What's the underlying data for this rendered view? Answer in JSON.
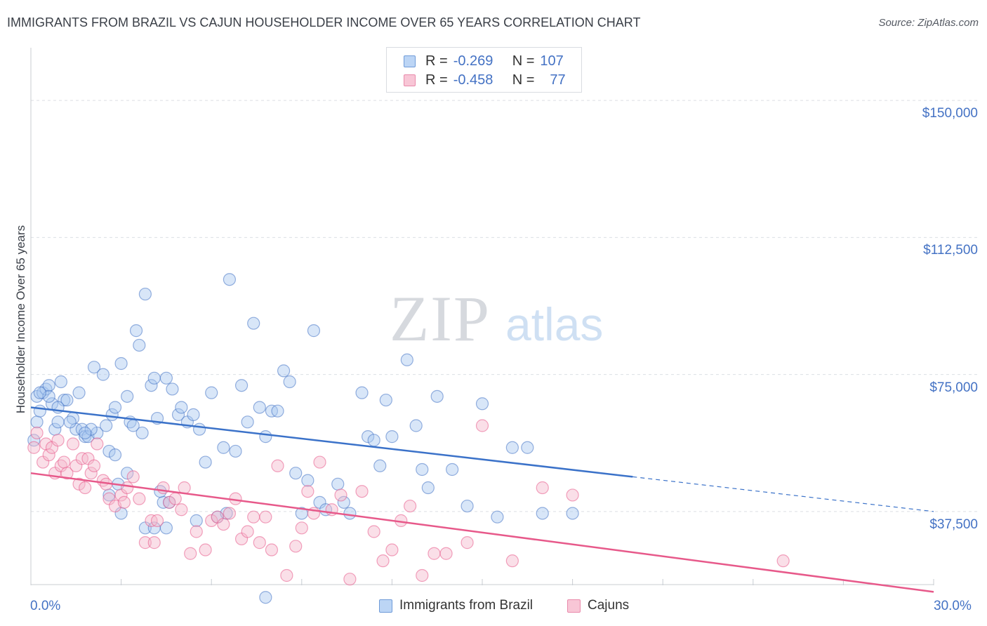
{
  "title": "IMMIGRANTS FROM BRAZIL VS CAJUN HOUSEHOLDER INCOME OVER 65 YEARS CORRELATION CHART",
  "source": "Source: ZipAtlas.com",
  "legend_stats": [
    {
      "r_label": "R =",
      "r_value": "-0.269",
      "n_label": "N =",
      "n_value": "107",
      "color": "#a9c8f0"
    },
    {
      "r_label": "R =",
      "r_value": "-0.458",
      "n_label": "N =",
      "n_value": "77",
      "color": "#f5b8cb"
    }
  ],
  "chart_data": {
    "type": "scatter",
    "title": "IMMIGRANTS FROM BRAZIL VS CAJUN HOUSEHOLDER INCOME OVER 65 YEARS CORRELATION CHART",
    "xlabel": "",
    "ylabel": "Householder Income Over 65 years",
    "xlim": [
      0,
      30
    ],
    "ylim": [
      17500,
      162500
    ],
    "x_tick_labels": [
      "0.0%",
      "30.0%"
    ],
    "y_ticks": [
      37500,
      75000,
      112500,
      150000
    ],
    "y_tick_labels": [
      "$37,500",
      "$75,000",
      "$112,500",
      "$150,000"
    ],
    "grid": true,
    "legend_position": "bottom",
    "watermark": "ZIPatlas",
    "series": [
      {
        "name": "Immigrants from Brazil",
        "color": "#4472c4",
        "fill": "#a9c8f0",
        "trend": {
          "x": [
            0,
            20
          ],
          "y": [
            66000,
            47000
          ],
          "dashed_extension_x": [
            20,
            30
          ],
          "dashed_extension_y": [
            47000,
            37500
          ]
        },
        "points": [
          [
            0.1,
            57
          ],
          [
            0.2,
            62
          ],
          [
            0.2,
            69
          ],
          [
            0.3,
            65
          ],
          [
            0.4,
            70
          ],
          [
            0.5,
            71
          ],
          [
            0.6,
            72
          ],
          [
            0.7,
            67
          ],
          [
            0.8,
            60
          ],
          [
            0.9,
            62
          ],
          [
            1.0,
            73
          ],
          [
            1.1,
            68
          ],
          [
            1.2,
            68
          ],
          [
            1.4,
            63
          ],
          [
            1.5,
            60
          ],
          [
            1.6,
            70
          ],
          [
            1.7,
            60
          ],
          [
            1.8,
            58
          ],
          [
            1.9,
            58
          ],
          [
            2.1,
            77
          ],
          [
            2.2,
            59
          ],
          [
            2.4,
            75
          ],
          [
            2.5,
            61
          ],
          [
            2.6,
            54
          ],
          [
            2.7,
            64
          ],
          [
            2.8,
            66
          ],
          [
            2.9,
            45
          ],
          [
            3.0,
            78
          ],
          [
            3.2,
            69
          ],
          [
            3.3,
            62
          ],
          [
            3.4,
            61
          ],
          [
            3.5,
            87
          ],
          [
            3.6,
            83
          ],
          [
            3.7,
            59
          ],
          [
            3.8,
            97
          ],
          [
            4.0,
            72
          ],
          [
            4.1,
            74
          ],
          [
            4.2,
            63
          ],
          [
            4.4,
            40
          ],
          [
            4.5,
            74
          ],
          [
            4.7,
            71
          ],
          [
            4.9,
            64
          ],
          [
            4.5,
            33
          ],
          [
            4.3,
            43
          ],
          [
            4.6,
            40
          ],
          [
            5.0,
            66
          ],
          [
            5.2,
            62
          ],
          [
            5.4,
            64
          ],
          [
            5.6,
            60
          ],
          [
            5.8,
            51
          ],
          [
            6.0,
            70
          ],
          [
            6.2,
            36
          ],
          [
            6.4,
            55
          ],
          [
            6.6,
            101
          ],
          [
            6.8,
            54
          ],
          [
            7.0,
            72
          ],
          [
            7.2,
            62
          ],
          [
            7.4,
            89
          ],
          [
            7.6,
            66
          ],
          [
            7.8,
            58
          ],
          [
            8.0,
            65
          ],
          [
            8.2,
            65
          ],
          [
            8.4,
            76
          ],
          [
            8.6,
            73
          ],
          [
            8.8,
            48
          ],
          [
            9.0,
            37
          ],
          [
            9.2,
            46
          ],
          [
            9.4,
            87
          ],
          [
            9.6,
            40
          ],
          [
            9.8,
            38
          ],
          [
            10.2,
            45
          ],
          [
            10.4,
            40
          ],
          [
            10.6,
            37
          ],
          [
            11.0,
            70
          ],
          [
            11.2,
            58
          ],
          [
            11.4,
            57
          ],
          [
            11.6,
            50
          ],
          [
            11.8,
            68
          ],
          [
            12.0,
            58
          ],
          [
            12.5,
            79
          ],
          [
            12.8,
            61
          ],
          [
            13.0,
            49
          ],
          [
            13.2,
            44
          ],
          [
            13.5,
            69
          ],
          [
            14.0,
            49
          ],
          [
            14.5,
            39
          ],
          [
            15.0,
            67
          ],
          [
            15.5,
            36
          ],
          [
            16.0,
            55
          ],
          [
            16.5,
            55
          ],
          [
            17.0,
            37
          ],
          [
            18.0,
            37
          ],
          [
            7.8,
            14
          ],
          [
            3.8,
            33
          ],
          [
            4.1,
            33
          ],
          [
            5.5,
            35
          ],
          [
            6.5,
            37
          ],
          [
            2.6,
            42
          ],
          [
            3.0,
            37
          ],
          [
            2.0,
            60
          ],
          [
            1.3,
            62
          ],
          [
            0.9,
            66
          ],
          [
            0.6,
            69
          ],
          [
            0.3,
            70
          ],
          [
            1.8,
            59
          ],
          [
            2.8,
            53
          ],
          [
            3.2,
            48
          ]
        ]
      },
      {
        "name": "Cajuns",
        "color": "#e7598a",
        "fill": "#f5b8cb",
        "trend": {
          "x": [
            0,
            30
          ],
          "y": [
            48000,
            15500
          ]
        },
        "points": [
          [
            0.1,
            55
          ],
          [
            0.2,
            59
          ],
          [
            0.4,
            51
          ],
          [
            0.5,
            56
          ],
          [
            0.6,
            53
          ],
          [
            0.7,
            55
          ],
          [
            0.8,
            48
          ],
          [
            0.9,
            57
          ],
          [
            1.0,
            50
          ],
          [
            1.1,
            51
          ],
          [
            1.2,
            48
          ],
          [
            1.4,
            56
          ],
          [
            1.5,
            50
          ],
          [
            1.6,
            45
          ],
          [
            1.7,
            52
          ],
          [
            1.8,
            44
          ],
          [
            1.9,
            52
          ],
          [
            2.0,
            48
          ],
          [
            2.1,
            50
          ],
          [
            2.2,
            56
          ],
          [
            2.4,
            46
          ],
          [
            2.5,
            45
          ],
          [
            2.6,
            41
          ],
          [
            2.8,
            39
          ],
          [
            3.0,
            42
          ],
          [
            3.1,
            40
          ],
          [
            3.2,
            44
          ],
          [
            3.4,
            47
          ],
          [
            3.6,
            41
          ],
          [
            3.8,
            29
          ],
          [
            4.0,
            35
          ],
          [
            4.1,
            29
          ],
          [
            4.2,
            35
          ],
          [
            4.4,
            44
          ],
          [
            4.6,
            40
          ],
          [
            4.8,
            41
          ],
          [
            5.0,
            38
          ],
          [
            5.1,
            44
          ],
          [
            5.3,
            26
          ],
          [
            5.5,
            32
          ],
          [
            5.8,
            27
          ],
          [
            6.0,
            35
          ],
          [
            6.2,
            36
          ],
          [
            6.4,
            34
          ],
          [
            6.6,
            37
          ],
          [
            6.8,
            41
          ],
          [
            7.0,
            30
          ],
          [
            7.2,
            32
          ],
          [
            7.4,
            36
          ],
          [
            7.6,
            29
          ],
          [
            7.8,
            36
          ],
          [
            8.0,
            27
          ],
          [
            8.2,
            50
          ],
          [
            8.5,
            20
          ],
          [
            8.8,
            28
          ],
          [
            9.0,
            33
          ],
          [
            9.2,
            43
          ],
          [
            9.4,
            37
          ],
          [
            9.6,
            51
          ],
          [
            10.0,
            38
          ],
          [
            10.3,
            42
          ],
          [
            10.6,
            19
          ],
          [
            11.0,
            43
          ],
          [
            11.4,
            32
          ],
          [
            11.7,
            24
          ],
          [
            12.0,
            27
          ],
          [
            12.3,
            35
          ],
          [
            12.6,
            39
          ],
          [
            13.0,
            20
          ],
          [
            13.4,
            26
          ],
          [
            13.8,
            26
          ],
          [
            14.5,
            29
          ],
          [
            15.0,
            61
          ],
          [
            16.0,
            24
          ],
          [
            17.0,
            44
          ],
          [
            18.0,
            42
          ],
          [
            25.0,
            24
          ]
        ]
      }
    ]
  }
}
